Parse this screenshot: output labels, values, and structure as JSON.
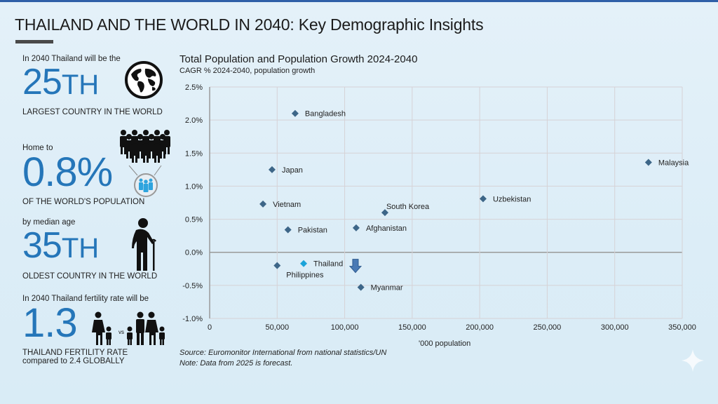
{
  "page": {
    "title": "THAILAND AND THE WORLD IN 2040: Key Demographic Insights",
    "accent_color": "#2576b9",
    "marker_color": "#3d6688",
    "highlight_color": "#1aa3d9"
  },
  "stats": [
    {
      "intro": "In 2040 Thailand will be the",
      "value": "25",
      "suffix": "TH",
      "caption": "LARGEST COUNTRY IN THE WORLD",
      "icon": "globe-icon"
    },
    {
      "intro": "Home to",
      "value": "0.8%",
      "suffix": "",
      "caption": "OF THE WORLD'S POPULATION",
      "icon": "crowd-icon"
    },
    {
      "intro": "by median age",
      "value": "35",
      "suffix": "TH",
      "caption": "OLDEST COUNTRY IN THE WORLD",
      "icon": "elderly-person-icon"
    },
    {
      "intro": "In 2040 Thailand fertility rate will be",
      "value": "1.3",
      "suffix": "",
      "caption": "THAILAND FERTILITY RATE",
      "caption2": "compared to 2.4 GLOBALLY",
      "icon": "family-icon",
      "vs_label": "vs"
    }
  ],
  "chart_data": {
    "type": "scatter",
    "title": "Total Population and Population Growth 2024-2040",
    "subtitle": "CAGR % 2024-2040, population growth",
    "xlabel": "'000 population",
    "ylabel": "CAGR % 2024-2040",
    "xlim": [
      0,
      350000
    ],
    "ylim": [
      -1.0,
      2.5
    ],
    "x_ticks": [
      0,
      50000,
      100000,
      150000,
      200000,
      250000,
      300000,
      350000
    ],
    "x_tick_labels": [
      "0",
      "50,000",
      "100,000",
      "150,000",
      "200,000",
      "250,000",
      "300,000",
      "350,000"
    ],
    "y_ticks": [
      2.5,
      2.0,
      1.5,
      1.0,
      0.5,
      0.0,
      -0.5,
      -1.0
    ],
    "y_tick_labels": [
      "2.5%",
      "2.0%",
      "1.5%",
      "1.0%",
      "0.5%",
      "0.0%",
      "-0.5%",
      "-1.0%"
    ],
    "grid": true,
    "points": [
      {
        "label": "Bangladesh",
        "x": 63300,
        "y": 2.1,
        "label_pos": "right"
      },
      {
        "label": "Japan",
        "x": 46200,
        "y": 1.25,
        "label_pos": "right"
      },
      {
        "label": "Vietnam",
        "x": 39500,
        "y": 0.73,
        "label_pos": "right"
      },
      {
        "label": "Pakistan",
        "x": 58000,
        "y": 0.34,
        "label_pos": "right"
      },
      {
        "label": "Philippines",
        "x": 50000,
        "y": -0.2,
        "label_pos": "below-right"
      },
      {
        "label": "Thailand",
        "x": 69600,
        "y": -0.17,
        "label_pos": "right",
        "highlight": true
      },
      {
        "label": "Afghanistan",
        "x": 108500,
        "y": 0.37,
        "label_pos": "right"
      },
      {
        "label": "South Korea",
        "x": 129800,
        "y": 0.6,
        "label_pos": "above-right"
      },
      {
        "label": "Myanmar",
        "x": 112000,
        "y": -0.53,
        "label_pos": "right"
      },
      {
        "label": "Uzbekistan",
        "x": 202500,
        "y": 0.81,
        "label_pos": "right"
      },
      {
        "label": "Malaysia",
        "x": 325000,
        "y": 1.36,
        "label_pos": "right"
      }
    ],
    "annotations": [
      {
        "type": "down-arrow",
        "x": 108000,
        "y": -0.2
      }
    ]
  },
  "footer": {
    "source": "Source: Euromonitor International from national statistics/UN",
    "note": "Note: Data from 2025 is forecast."
  }
}
